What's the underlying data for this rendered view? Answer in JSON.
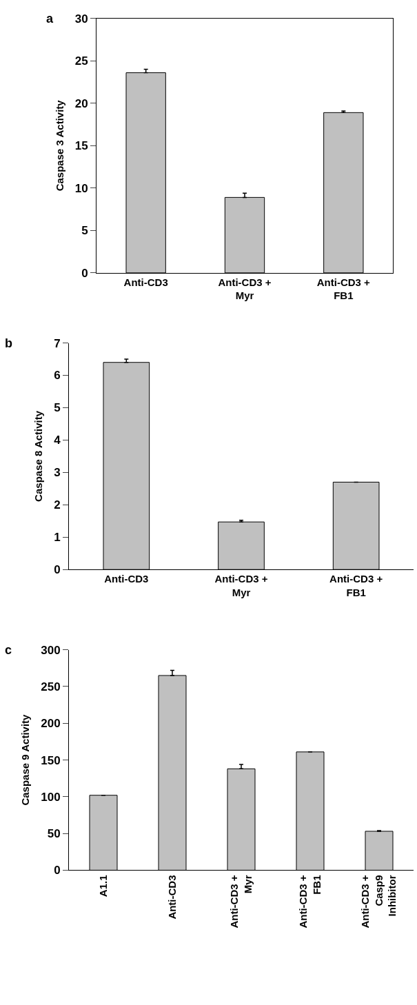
{
  "chart_data": [
    {
      "type": "bar",
      "title": "a",
      "ylabel": "Caspase 3 Activity",
      "categories": [
        "Anti-CD3",
        "Anti-CD3 +\nMyr",
        "Anti-CD3 +\nFB1"
      ],
      "values": [
        23.6,
        8.9,
        18.9
      ],
      "errors": [
        [
          23.6,
          24.0
        ],
        [
          8.9,
          9.4
        ],
        [
          18.9,
          19.1
        ]
      ],
      "color": "#c0c0c0",
      "ylim": [
        0,
        30
      ],
      "yticks": [
        0,
        5,
        10,
        15,
        20,
        25,
        30
      ]
    },
    {
      "type": "bar",
      "title": "b",
      "ylabel": "Caspase 8 Activity",
      "categories": [
        "Anti-CD3",
        "Anti-CD3 +\nMyr",
        "Anti-CD3 +\nFB1"
      ],
      "values": [
        6.4,
        1.47,
        2.7
      ],
      "errors": [
        [
          6.4,
          6.5
        ],
        [
          1.47,
          1.52
        ],
        null
      ],
      "color": "#c0c0c0",
      "ylim": [
        0,
        7
      ],
      "yticks": [
        0,
        1,
        2,
        3,
        4,
        5,
        6,
        7
      ]
    },
    {
      "type": "bar",
      "title": "c",
      "ylabel": "Caspase 9 Activity",
      "categories": [
        "A1.1",
        "Anti-CD3",
        "Anti-CD3 +\nMyr",
        "Anti-CD3 +\nFB1",
        "Anti-CD3 +\nCasp9\nInhibitor"
      ],
      "values": [
        102,
        265,
        138,
        161,
        53
      ],
      "errors": [
        null,
        [
          265,
          272
        ],
        [
          138,
          144
        ],
        null,
        [
          53,
          54
        ]
      ],
      "color": "#c0c0c0",
      "ylim": [
        0,
        300
      ],
      "yticks": [
        0,
        50,
        100,
        150,
        200,
        250,
        300
      ]
    }
  ]
}
